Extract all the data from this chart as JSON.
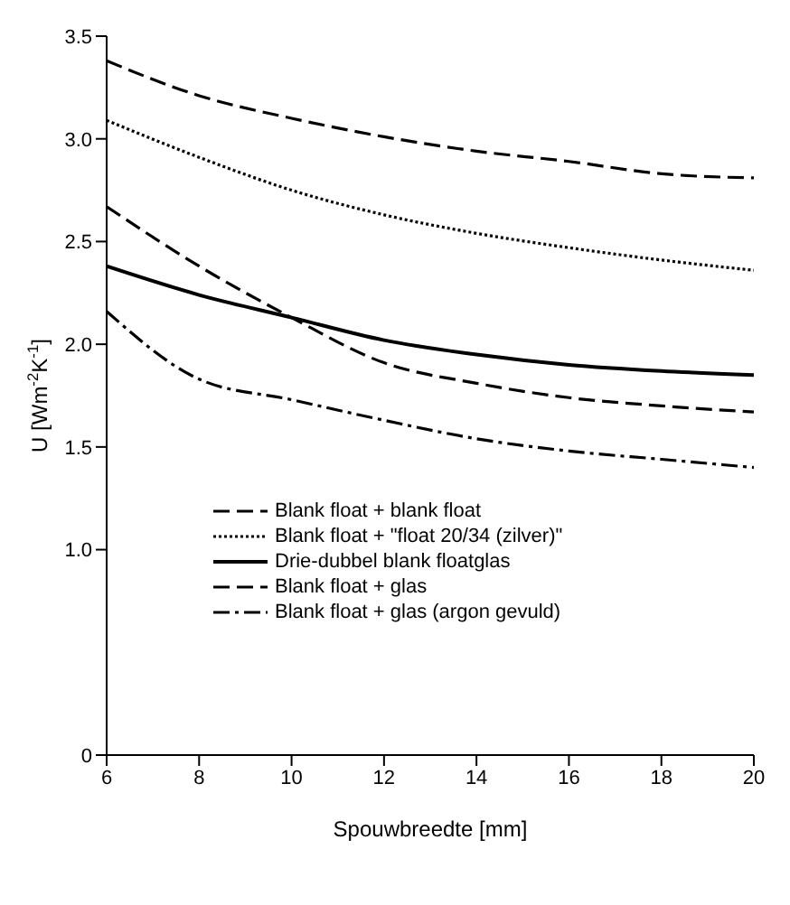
{
  "chart_data": {
    "type": "line",
    "xlabel": "Spouwbreedte [mm]",
    "ylabel": "U [Wm$^{-2}$K$^{-1}$]",
    "x": [
      6,
      8,
      10,
      12,
      14,
      16,
      18,
      20
    ],
    "series": [
      {
        "name": "Blank float + blank float",
        "color": "#000000",
        "line_style": "dashed",
        "values": [
          3.38,
          3.21,
          3.1,
          3.01,
          2.94,
          2.89,
          2.83,
          2.81
        ]
      },
      {
        "name": "Blank float + \"float 20/34 (zilver)\"",
        "color": "#000000",
        "line_style": "dotted",
        "values": [
          3.09,
          2.91,
          2.75,
          2.63,
          2.54,
          2.47,
          2.41,
          2.36
        ]
      },
      {
        "name": "Drie-dubbel blank floatglas",
        "color": "#000000",
        "line_style": "solid",
        "values": [
          2.38,
          2.24,
          2.13,
          2.02,
          1.95,
          1.9,
          1.87,
          1.85
        ]
      },
      {
        "name": "Blank float + glas",
        "color": "#000000",
        "line_style": "dashed",
        "values": [
          2.67,
          2.38,
          2.13,
          1.91,
          1.81,
          1.74,
          1.7,
          1.67
        ]
      },
      {
        "name": "Blank float + glas (argon gevuld)",
        "color": "#000000",
        "line_style": "dashdot",
        "values": [
          2.16,
          1.83,
          1.73,
          1.63,
          1.54,
          1.48,
          1.44,
          1.4
        ]
      }
    ],
    "xlim": [
      6,
      20
    ],
    "xticks": [
      6,
      8,
      10,
      12,
      14,
      16,
      18,
      20
    ],
    "ylim": [
      0,
      3.5
    ],
    "yticks": [
      {
        "value": 0,
        "label": "0"
      },
      {
        "value": 1,
        "label": "1.0"
      },
      {
        "value": 1.5,
        "label": "1.5"
      },
      {
        "value": 2,
        "label": "2.0"
      },
      {
        "value": 2.5,
        "label": "2.5"
      },
      {
        "value": 3,
        "label": "3.0"
      },
      {
        "value": 3.5,
        "label": "3.5"
      }
    ],
    "grid": false,
    "legend": "bottom left",
    "marker": "none"
  }
}
